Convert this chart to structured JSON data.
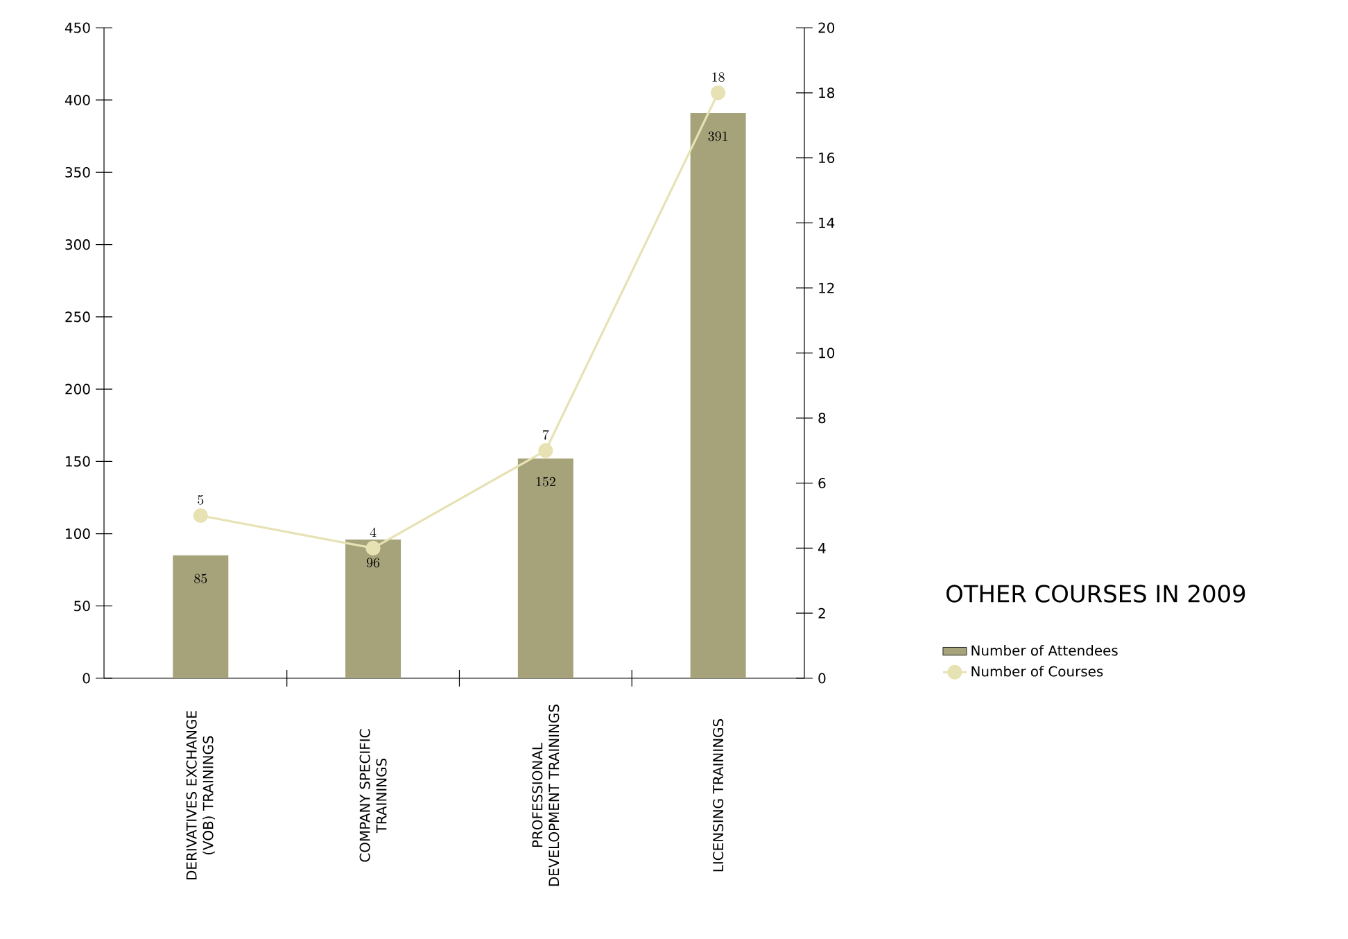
{
  "chart_data": {
    "type": "bar",
    "title": "OTHER COURSES IN 2009",
    "categories": [
      "DERIVATIVES EXCHANGE (VOB) TRAININGS",
      "COMPANY SPECIFIC TRAININGS",
      "PROFESSIONAL DEVELOPMENT TRAININGS",
      "LICENSING TRAININGS"
    ],
    "series": [
      {
        "name": "Number of Attendees",
        "color": "#a6a27a",
        "values": [
          85,
          96,
          152,
          391
        ]
      },
      {
        "name": "Number of Courses",
        "type": "line",
        "axis": "y2",
        "color": "#e6e2b4",
        "marker": "circle",
        "values": [
          5,
          4,
          7,
          18
        ]
      }
    ],
    "ylim": [
      0,
      450
    ],
    "yticks": [
      0,
      50,
      100,
      150,
      200,
      250,
      300,
      350,
      400,
      450
    ],
    "y2lim": [
      0,
      20
    ],
    "y2ticks": [
      0,
      2,
      4,
      6,
      8,
      10,
      12,
      14,
      16,
      18,
      20
    ],
    "data_labels": true,
    "legend": "right",
    "grid": false
  }
}
